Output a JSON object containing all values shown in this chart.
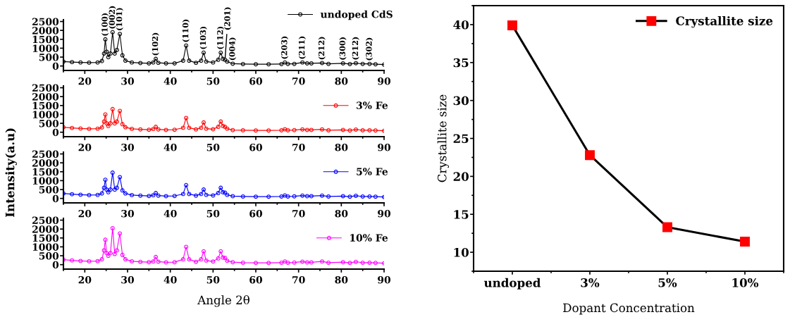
{
  "chart_data": [
    {
      "type": "line",
      "x": [
        15,
        17,
        19,
        21,
        23,
        24,
        24.5,
        24.8,
        25.1,
        25.5,
        26,
        26.5,
        27,
        27.5,
        28.2,
        28.8,
        29.5,
        31,
        33,
        35,
        36,
        36.6,
        37.2,
        39,
        41,
        43,
        43.7,
        44.4,
        46,
        47.2,
        47.8,
        48.4,
        50,
        51.2,
        51.8,
        52.3,
        52.8,
        53.3,
        54.6,
        57,
        60,
        63,
        66,
        66.8,
        67.5,
        69,
        70.9,
        72,
        73,
        75.5,
        77,
        80.4,
        82,
        83.4,
        85,
        86.6,
        88,
        90
      ],
      "series": [
        {
          "name": "undoped CdS",
          "color": "#000000",
          "values": [
            250,
            220,
            200,
            190,
            200,
            280,
            700,
            1500,
            800,
            500,
            700,
            1900,
            700,
            900,
            1800,
            600,
            300,
            200,
            170,
            150,
            200,
            400,
            180,
            150,
            150,
            300,
            1150,
            300,
            180,
            300,
            750,
            250,
            200,
            350,
            750,
            400,
            350,
            250,
            130,
            110,
            100,
            100,
            110,
            200,
            120,
            120,
            200,
            150,
            150,
            170,
            120,
            150,
            110,
            160,
            120,
            120,
            100,
            80
          ]
        }
      ],
      "xlim": [
        15,
        90
      ],
      "xticks": [
        20,
        30,
        40,
        50,
        60,
        70,
        80,
        90
      ],
      "ylim": [
        -250,
        2600
      ],
      "yticks": [
        0,
        500,
        1000,
        1500,
        2000,
        2500
      ],
      "marker": "circle",
      "legend": "top right",
      "annotations": [
        {
          "text": "(100)",
          "x": 24.8,
          "y": 1500
        },
        {
          "text": "(002)",
          "x": 26.5,
          "y": 1900
        },
        {
          "text": "(101)",
          "x": 28.2,
          "y": 1800
        },
        {
          "text": "(102)",
          "x": 36.6,
          "y": 400
        },
        {
          "text": "(110)",
          "x": 43.7,
          "y": 1150
        },
        {
          "text": "(103)",
          "x": 47.8,
          "y": 750
        },
        {
          "text": "(112)",
          "x": 51.8,
          "y": 750
        },
        {
          "text": "(201)",
          "x": 52.8,
          "y": 350
        },
        {
          "text": "(004)",
          "x": 54.6,
          "y": 130
        },
        {
          "text": "(203)",
          "x": 66.8,
          "y": 200
        },
        {
          "text": "(211)",
          "x": 70.9,
          "y": 200
        },
        {
          "text": "(212)",
          "x": 75.5,
          "y": 170
        },
        {
          "text": "(300)",
          "x": 80.4,
          "y": 150
        },
        {
          "text": "(212)",
          "x": 83.4,
          "y": 160
        },
        {
          "text": "(302)",
          "x": 86.6,
          "y": 120
        }
      ]
    },
    {
      "type": "line",
      "x": [
        15,
        17,
        19,
        21,
        23,
        24,
        24.5,
        24.8,
        25.1,
        25.5,
        26,
        26.5,
        27,
        27.5,
        28.2,
        28.8,
        29.5,
        31,
        33,
        35,
        36,
        36.6,
        37.2,
        39,
        41,
        43,
        43.7,
        44.4,
        46,
        47.2,
        47.8,
        48.4,
        50,
        51.2,
        51.8,
        52.3,
        52.8,
        53.3,
        54.6,
        57,
        60,
        63,
        66,
        66.8,
        67.5,
        69,
        70.9,
        72,
        73,
        75.5,
        77,
        80.4,
        82,
        83.4,
        85,
        86.6,
        88,
        90
      ],
      "series": [
        {
          "name": "3% Fe",
          "color": "#ff0000",
          "values": [
            280,
            240,
            210,
            190,
            200,
            270,
            600,
            1000,
            500,
            350,
            500,
            1300,
            500,
            600,
            1200,
            450,
            280,
            190,
            160,
            140,
            180,
            300,
            160,
            130,
            140,
            250,
            800,
            250,
            160,
            250,
            550,
            200,
            170,
            300,
            600,
            350,
            300,
            200,
            120,
            110,
            100,
            100,
            110,
            170,
            110,
            120,
            160,
            130,
            130,
            160,
            110,
            130,
            100,
            150,
            110,
            110,
            100,
            80
          ]
        }
      ],
      "xlim": [
        15,
        90
      ],
      "xticks": [
        20,
        30,
        40,
        50,
        60,
        70,
        80,
        90
      ],
      "ylim": [
        -250,
        2600
      ],
      "yticks": [
        0,
        500,
        1000,
        1500,
        2000,
        2500
      ],
      "marker": "circle",
      "legend": "right"
    },
    {
      "type": "line",
      "ylabel": "Intensity(a.u)",
      "x": [
        15,
        17,
        19,
        21,
        23,
        24,
        24.5,
        24.8,
        25.1,
        25.5,
        26,
        26.5,
        27,
        27.5,
        28.2,
        28.8,
        29.5,
        31,
        33,
        35,
        36,
        36.6,
        37.2,
        39,
        41,
        43,
        43.7,
        44.4,
        46,
        47.2,
        47.8,
        48.4,
        50,
        51.2,
        51.8,
        52.3,
        52.8,
        53.3,
        54.6,
        57,
        60,
        63,
        66,
        66.8,
        67.5,
        69,
        70.9,
        72,
        73,
        75.5,
        77,
        80.4,
        82,
        83.4,
        85,
        86.6,
        88,
        90
      ],
      "series": [
        {
          "name": "5% Fe",
          "color": "#0000ff",
          "values": [
            280,
            240,
            210,
            190,
            200,
            280,
            600,
            1050,
            500,
            350,
            500,
            1450,
            500,
            600,
            1200,
            450,
            280,
            190,
            160,
            140,
            180,
            300,
            160,
            130,
            140,
            250,
            750,
            250,
            160,
            250,
            500,
            200,
            170,
            300,
            600,
            350,
            320,
            200,
            130,
            110,
            100,
            100,
            110,
            170,
            110,
            120,
            160,
            130,
            130,
            160,
            110,
            130,
            100,
            150,
            110,
            110,
            100,
            80
          ]
        }
      ],
      "xlim": [
        15,
        90
      ],
      "xticks": [
        20,
        30,
        40,
        50,
        60,
        70,
        80,
        90
      ],
      "ylim": [
        -250,
        2600
      ],
      "yticks": [
        0,
        500,
        1000,
        1500,
        2000,
        2500
      ],
      "marker": "circle",
      "legend": "right"
    },
    {
      "type": "line",
      "xlabel": "Angle 2θ",
      "x": [
        15,
        17,
        19,
        21,
        23,
        24,
        24.5,
        24.8,
        25.1,
        25.5,
        26,
        26.5,
        27,
        27.5,
        28.2,
        28.8,
        29.5,
        31,
        33,
        35,
        36,
        36.6,
        37.2,
        39,
        41,
        43,
        43.7,
        44.4,
        46,
        47.2,
        47.8,
        48.4,
        50,
        51.2,
        51.8,
        52.3,
        52.8,
        53.3,
        54.6,
        57,
        60,
        63,
        66,
        66.8,
        67.5,
        69,
        70.9,
        72,
        73,
        75.5,
        77,
        80.4,
        82,
        83.4,
        85,
        86.6,
        88,
        90
      ],
      "series": [
        {
          "name": "10% Fe",
          "color": "#ff00ff",
          "values": [
            280,
            240,
            210,
            190,
            200,
            300,
            800,
            1400,
            650,
            500,
            650,
            2050,
            600,
            800,
            1750,
            550,
            300,
            190,
            160,
            140,
            180,
            430,
            170,
            130,
            140,
            300,
            1000,
            300,
            160,
            300,
            750,
            230,
            180,
            350,
            750,
            400,
            380,
            220,
            140,
            110,
            100,
            100,
            110,
            180,
            110,
            120,
            170,
            130,
            130,
            180,
            110,
            140,
            100,
            160,
            110,
            110,
            100,
            80
          ]
        }
      ],
      "xlim": [
        15,
        90
      ],
      "xticks": [
        20,
        30,
        40,
        50,
        60,
        70,
        80,
        90
      ],
      "ylim": [
        -250,
        2600
      ],
      "yticks": [
        0,
        500,
        1000,
        1500,
        2000,
        2500
      ],
      "marker": "circle",
      "legend": "right"
    },
    {
      "type": "line",
      "xlabel": "Dopant Concentration",
      "ylabel": "Crystallite size",
      "categories": [
        "undoped",
        "3%",
        "5%",
        "10%"
      ],
      "series": [
        {
          "name": "Crystallite size",
          "color": "#ff0000",
          "values": [
            39.9,
            22.8,
            13.3,
            11.4
          ]
        }
      ],
      "ylim": [
        7.5,
        42.5
      ],
      "yticks": [
        10,
        15,
        20,
        25,
        30,
        35,
        40
      ],
      "marker": "square",
      "legend": "top right"
    }
  ]
}
